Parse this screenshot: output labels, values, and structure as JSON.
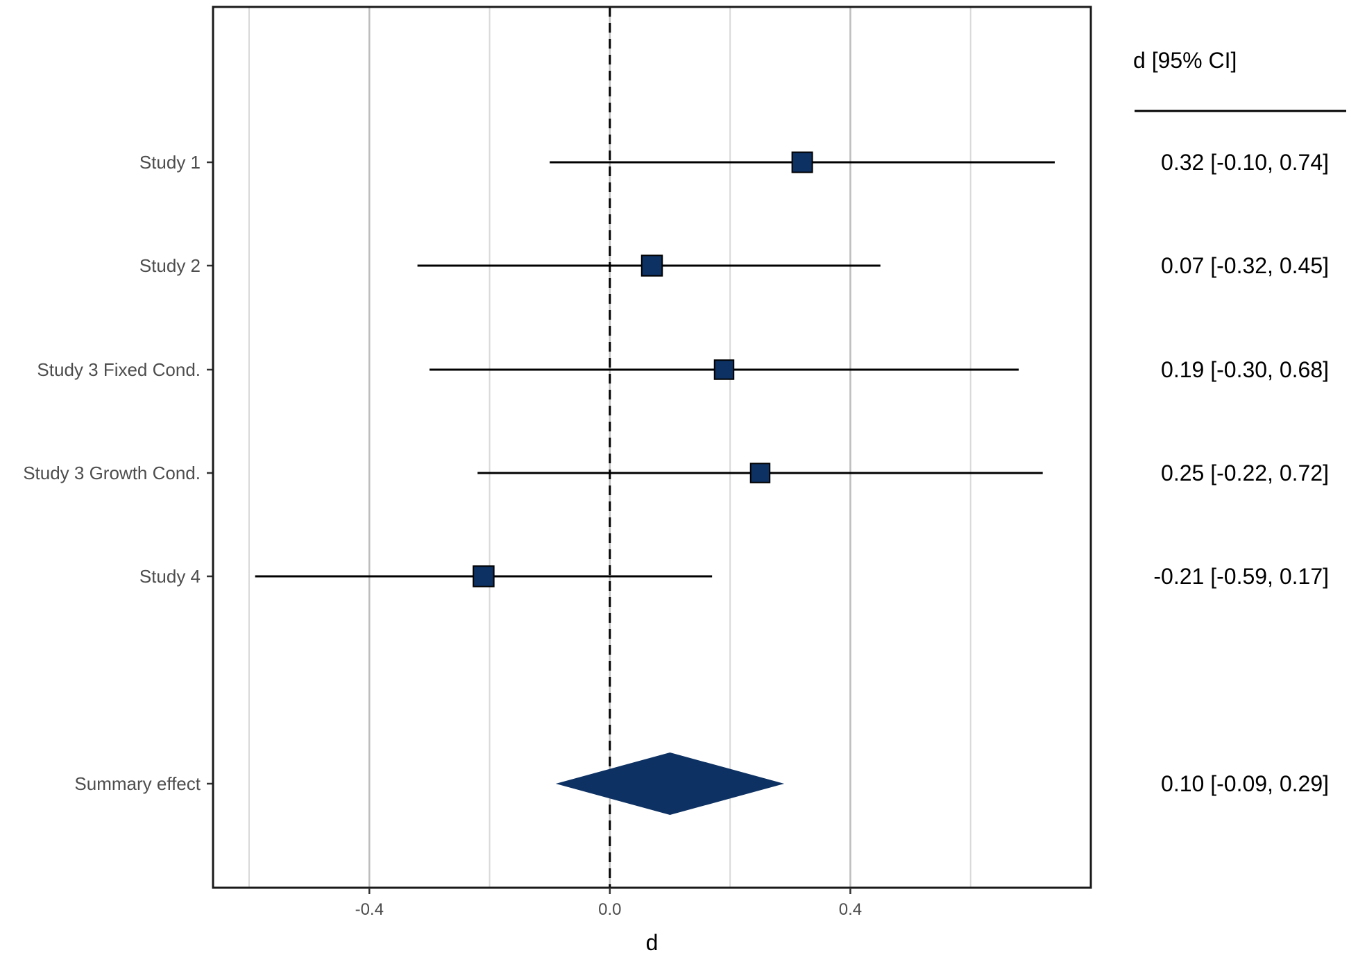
{
  "chart_data": {
    "type": "forest",
    "xlabel": "d",
    "xlim": [
      -0.66,
      0.8
    ],
    "x_ticks": [
      -0.4,
      0.0,
      0.4
    ],
    "x_tick_labels": [
      "-0.4",
      "0.0",
      "0.4"
    ],
    "minor_grid": [
      -0.6,
      -0.2,
      0.2,
      0.6
    ],
    "reference_line": 0,
    "ci_column_header": "d [95% CI]",
    "studies": [
      {
        "label": "Study 1",
        "estimate": 0.32,
        "lower": -0.1,
        "upper": 0.74,
        "ci_text": "0.32 [-0.10, 0.74]",
        "weight": 0.9
      },
      {
        "label": "Study 2",
        "estimate": 0.07,
        "lower": -0.32,
        "upper": 0.45,
        "ci_text": "0.07 [-0.32, 0.45]",
        "weight": 0.95
      },
      {
        "label": "Study 3 Fixed Cond.",
        "estimate": 0.19,
        "lower": -0.3,
        "upper": 0.68,
        "ci_text": "0.19 [-0.30, 0.68]",
        "weight": 0.75
      },
      {
        "label": "Study 3 Growth Cond.",
        "estimate": 0.25,
        "lower": -0.22,
        "upper": 0.72,
        "ci_text": "0.25 [-0.22, 0.72]",
        "weight": 0.75
      },
      {
        "label": "Study 4",
        "estimate": -0.21,
        "lower": -0.59,
        "upper": 0.17,
        "ci_text": "-0.21 [-0.59, 0.17]",
        "weight": 0.95
      }
    ],
    "summary": {
      "label": "Summary effect",
      "estimate": 0.1,
      "lower": -0.09,
      "upper": 0.29,
      "ci_text": "0.10 [-0.09, 0.29]"
    },
    "colors": {
      "marker": "#0d3163",
      "line": "#000000",
      "grid_major": "#bdbdbd",
      "grid_minor": "#d9d9d9"
    }
  }
}
